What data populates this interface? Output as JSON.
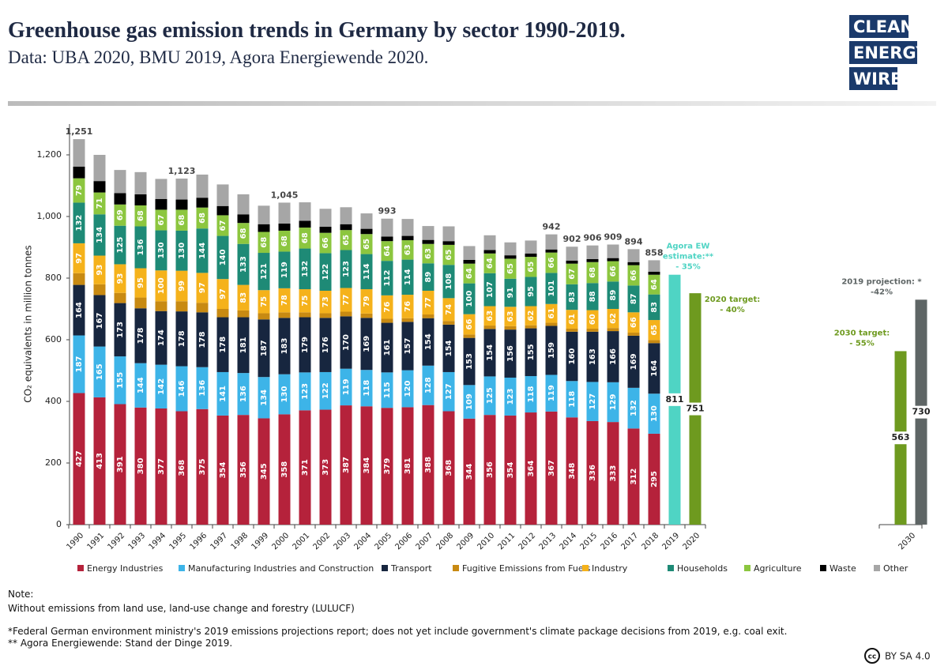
{
  "chart_data": {
    "type": "bar",
    "stacked": true,
    "title": "Greenhouse gas emission trends in Germany by sector 1990-2019.",
    "subtitle": "Data: UBA 2020, BMU 2019, Agora Energiewende 2020.",
    "y_label": "CO₂ equivalents in million tonnes",
    "categories": [
      "1990",
      "1991",
      "1992",
      "1993",
      "1994",
      "1995",
      "1996",
      "1997",
      "1998",
      "1999",
      "2000",
      "2001",
      "2002",
      "2003",
      "2004",
      "2005",
      "2006",
      "2007",
      "2008",
      "2009",
      "2010",
      "2011",
      "2012",
      "2013",
      "2014",
      "2015",
      "2016",
      "2017",
      "2018",
      "2019",
      "2020",
      null,
      null,
      null,
      null,
      null,
      null,
      null,
      null,
      null,
      "2030"
    ],
    "ylim": [
      0,
      1300
    ],
    "yticks": [
      0,
      200,
      400,
      600,
      800,
      {
        "value": 1000,
        "label": "1,000"
      },
      {
        "value": 1200,
        "label": "1,200"
      }
    ],
    "series": [
      {
        "name": "Energy Industries",
        "color": "#b5223b",
        "show_labels": true,
        "values": [
          427,
          413,
          391,
          380,
          377,
          368,
          375,
          354,
          356,
          345,
          358,
          371,
          373,
          387,
          384,
          379,
          381,
          388,
          368,
          344,
          356,
          354,
          364,
          367,
          348,
          336,
          333,
          312,
          295,
          null,
          null,
          null,
          null,
          null,
          null,
          null,
          null,
          null,
          null,
          null,
          null
        ]
      },
      {
        "name": "Manufacturing Industries and Construction",
        "color": "#3db4e8",
        "show_labels": true,
        "values": [
          187,
          165,
          155,
          144,
          142,
          146,
          136,
          141,
          136,
          134,
          130,
          123,
          122,
          119,
          118,
          115,
          120,
          128,
          127,
          109,
          125,
          123,
          118,
          119,
          118,
          127,
          129,
          132,
          130,
          null,
          null,
          null,
          null,
          null,
          null,
          null,
          null,
          null,
          null,
          null,
          null
        ]
      },
      {
        "name": "Transport",
        "color": "#17263f",
        "show_labels": true,
        "values": [
          164,
          167,
          173,
          178,
          174,
          178,
          178,
          178,
          181,
          187,
          183,
          179,
          176,
          170,
          169,
          161,
          157,
          154,
          154,
          153,
          154,
          156,
          155,
          159,
          160,
          163,
          166,
          169,
          164,
          null,
          null,
          null,
          null,
          null,
          null,
          null,
          null,
          null,
          null,
          null,
          null
        ]
      },
      {
        "name": "Fugitive Emissions from Fuels",
        "color": "#c88a12",
        "show_labels": false,
        "values": [
          38,
          35,
          33,
          35,
          32,
          33,
          31,
          27,
          22,
          20,
          18,
          16,
          15,
          15,
          14,
          13,
          12,
          12,
          12,
          11,
          11,
          11,
          10,
          10,
          10,
          10,
          10,
          10,
          10,
          null,
          null,
          null,
          null,
          null,
          null,
          null,
          null,
          null,
          null,
          null,
          null
        ]
      },
      {
        "name": "Industry",
        "color": "#f5b21b",
        "show_labels": true,
        "values": [
          97,
          93,
          93,
          95,
          100,
          99,
          97,
          97,
          83,
          75,
          78,
          75,
          73,
          77,
          79,
          76,
          76,
          77,
          74,
          66,
          63,
          63,
          62,
          61,
          61,
          60,
          62,
          66,
          65,
          null,
          null,
          null,
          null,
          null,
          null,
          null,
          null,
          null,
          null,
          null,
          null
        ]
      },
      {
        "name": "Households",
        "color": "#1e8a76",
        "show_labels": true,
        "values": [
          132,
          134,
          125,
          136,
          130,
          130,
          144,
          140,
          133,
          121,
          119,
          132,
          122,
          123,
          114,
          112,
          114,
          89,
          108,
          100,
          107,
          91,
          95,
          101,
          83,
          88,
          89,
          87,
          83,
          null,
          null,
          null,
          null,
          null,
          null,
          null,
          null,
          null,
          null,
          null,
          null
        ]
      },
      {
        "name": "Agriculture",
        "color": "#8cc63f",
        "show_labels": true,
        "values": [
          79,
          71,
          69,
          68,
          67,
          68,
          68,
          67,
          68,
          68,
          68,
          68,
          66,
          65,
          65,
          64,
          63,
          63,
          65,
          64,
          64,
          65,
          65,
          66,
          67,
          68,
          66,
          66,
          64,
          null,
          null,
          null,
          null,
          null,
          null,
          null,
          null,
          null,
          null,
          null,
          null
        ]
      },
      {
        "name": "Waste",
        "color": "#000000",
        "show_labels": false,
        "values": [
          38,
          37,
          37,
          36,
          35,
          33,
          32,
          30,
          28,
          25,
          23,
          22,
          20,
          19,
          17,
          15,
          14,
          13,
          12,
          12,
          11,
          11,
          11,
          10,
          10,
          10,
          10,
          10,
          10,
          null,
          null,
          null,
          null,
          null,
          null,
          null,
          null,
          null,
          null,
          null,
          null
        ]
      },
      {
        "name": "Other",
        "color": "#a6a6a6",
        "show_labels": false,
        "values": [
          89,
          85,
          75,
          72,
          65,
          68,
          75,
          70,
          65,
          60,
          68,
          60,
          58,
          55,
          50,
          58,
          55,
          45,
          48,
          45,
          48,
          42,
          42,
          49,
          45,
          44,
          44,
          42,
          37,
          null,
          null,
          null,
          null,
          null,
          null,
          null,
          null,
          null,
          null,
          null,
          null
        ]
      }
    ],
    "totals": {
      "values": [
        1251,
        null,
        null,
        null,
        null,
        1123,
        null,
        null,
        null,
        null,
        1045,
        null,
        null,
        null,
        null,
        993,
        null,
        null,
        null,
        null,
        null,
        null,
        null,
        942,
        902,
        906,
        909,
        894,
        858,
        null,
        null,
        null,
        null,
        null,
        null,
        null,
        null,
        null,
        null,
        null,
        null
      ],
      "value_labels": [
        "1,251",
        null,
        null,
        null,
        null,
        "1,123",
        null,
        null,
        null,
        null,
        "1,045",
        null,
        null,
        null,
        null,
        "993",
        null,
        null,
        null,
        null,
        null,
        null,
        null,
        "942",
        "902",
        "906",
        "909",
        "894",
        "858",
        null,
        null,
        null,
        null,
        null,
        null,
        null,
        null,
        null,
        null,
        null,
        null
      ]
    },
    "projections": [
      {
        "label": [
          "Agora EW",
          "estimate:**",
          "- 35%"
        ],
        "color": "#4fd4c4",
        "values": [
          null,
          null,
          null,
          null,
          null,
          null,
          null,
          null,
          null,
          null,
          null,
          null,
          null,
          null,
          null,
          null,
          null,
          null,
          null,
          null,
          null,
          null,
          null,
          null,
          null,
          null,
          null,
          null,
          null,
          811,
          null,
          null,
          null,
          null,
          null,
          null,
          null,
          null,
          null,
          null,
          null
        ]
      },
      {
        "label": [
          "2020 target:",
          "- 40%"
        ],
        "color": "#6e9a1f",
        "values": [
          null,
          null,
          null,
          null,
          null,
          null,
          null,
          null,
          null,
          null,
          null,
          null,
          null,
          null,
          null,
          null,
          null,
          null,
          null,
          null,
          null,
          null,
          null,
          null,
          null,
          null,
          null,
          null,
          null,
          null,
          751,
          null,
          null,
          null,
          null,
          null,
          null,
          null,
          null,
          null,
          null
        ]
      },
      {
        "label": [
          "2030 target:",
          "- 55%"
        ],
        "color": "#6e9a1f",
        "values": [
          null,
          null,
          null,
          null,
          null,
          null,
          null,
          null,
          null,
          null,
          null,
          null,
          null,
          null,
          null,
          null,
          null,
          null,
          null,
          null,
          null,
          null,
          null,
          null,
          null,
          null,
          null,
          null,
          null,
          null,
          null,
          null,
          null,
          null,
          null,
          null,
          null,
          null,
          null,
          null,
          563
        ]
      },
      {
        "label": [
          "2019 projection: *",
          "-42%"
        ],
        "color": "#5e6565",
        "values": [
          null,
          null,
          null,
          null,
          null,
          null,
          null,
          null,
          null,
          null,
          null,
          null,
          null,
          null,
          null,
          null,
          null,
          null,
          null,
          null,
          null,
          null,
          null,
          null,
          null,
          null,
          null,
          null,
          null,
          null,
          null,
          null,
          null,
          null,
          null,
          null,
          null,
          null,
          null,
          null,
          730
        ]
      }
    ]
  },
  "logo": [
    "CLEAN",
    "ENERGY",
    "WIRE"
  ],
  "notes": [
    "Note:",
    "Without emissions from land use, land-use change and forestry (LULUCF)",
    "*Federal German environment ministry's 2019 emissions projections report; does not yet include government's climate package decisions from 2019, e.g. coal exit.",
    "** Agora Energiewende: Stand der Dinge 2019."
  ],
  "license": {
    "icon": "cc",
    "text": "BY SA 4.0"
  }
}
